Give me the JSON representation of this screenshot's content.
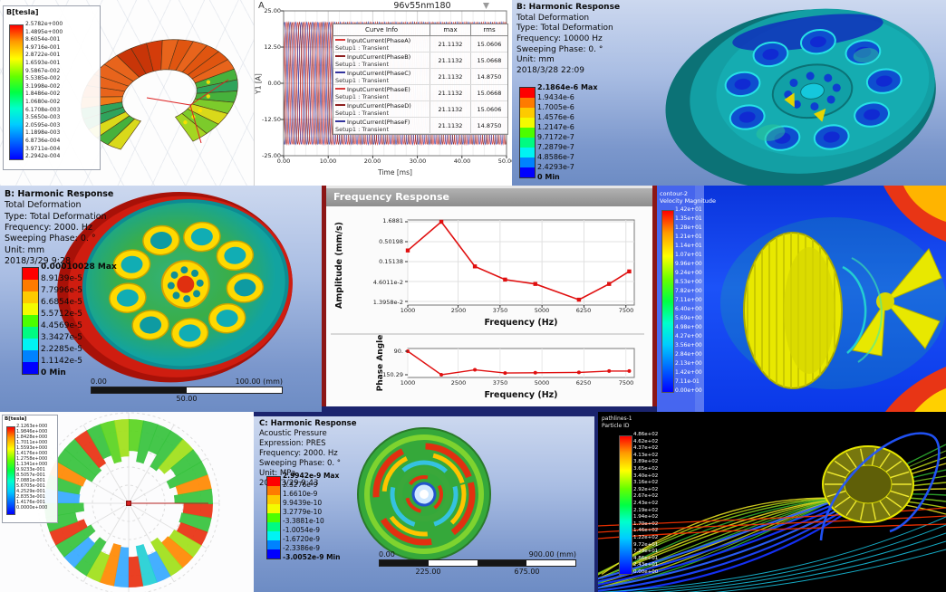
{
  "colors": {
    "ansys_bands": [
      "#fe0000",
      "#fe7b00",
      "#fdca00",
      "#f3fb00",
      "#4cfe00",
      "#00fb82",
      "#00f3f3",
      "#0082fe",
      "#0000fe"
    ],
    "window_title_bg": "#9a9a9a",
    "window_border": "#8c1616",
    "plot_line_red": "#e01010",
    "ansys_bg_top": "#ccd8ef",
    "ansys_bg_bottom": "#6d8cc4"
  },
  "panels": {
    "maxwell_torus": {
      "colorbar_title": "B[tesla]",
      "colorbar_values": [
        "2.5782e+000",
        "1.4895e+000",
        "8.6054e-001",
        "4.9716e-001",
        "2.8722e-001",
        "1.6593e-001",
        "9.5867e-002",
        "5.5385e-002",
        "3.1998e-002",
        "1.8486e-002",
        "1.0680e-002",
        "6.1708e-003",
        "3.5650e-003",
        "2.0595e-003",
        "1.1898e-003",
        "6.8736e-004",
        "3.9711e-004",
        "2.2942e-004"
      ]
    },
    "transient": {
      "marker": "A",
      "title": "96v55nm180",
      "legend_headers": [
        "Curve Info",
        "max",
        "rms"
      ]
    },
    "harmonic_10000": {
      "header": [
        "B: Harmonic Response",
        "Total Deformation",
        "Type: Total Deformation",
        "Frequency: 10000 Hz",
        "Sweeping Phase: 0. °",
        "Unit: mm",
        "2018/3/28 22:09"
      ],
      "colorbar": [
        "2.1864e-6 Max",
        "1.9434e-6",
        "1.7005e-6",
        "1.4576e-6",
        "1.2147e-6",
        "9.7172e-7",
        "7.2879e-7",
        "4.8586e-7",
        "2.4293e-7",
        "0 Min"
      ]
    },
    "harmonic_2000": {
      "header": [
        "B: Harmonic Response",
        "Total Deformation",
        "Type: Total Deformation",
        "Frequency: 2000. Hz",
        "Sweeping Phase: 0. °",
        "Unit: mm",
        "2018/3/29 9:28"
      ],
      "colorbar": [
        "0.00010028 Max",
        "8.9139e-5",
        "7.7996e-5",
        "6.6854e-5",
        "5.5712e-5",
        "4.4569e-5",
        "3.3427e-5",
        "2.2285e-5",
        "1.1142e-5",
        "0 Min"
      ],
      "ruler": {
        "start": "0.00",
        "mid": "50.00",
        "end": "100.00 (mm)"
      }
    },
    "freq_response": {
      "window_title": "Frequency Response"
    },
    "cfd": {
      "colorbar_title_lines": [
        "contour-2",
        "Velocity Magnitude"
      ],
      "colorbar_values": [
        "1.42e+01",
        "1.35e+01",
        "1.28e+01",
        "1.21e+01",
        "1.14e+01",
        "1.07e+01",
        "9.96e+00",
        "9.24e+00",
        "8.53e+00",
        "7.82e+00",
        "7.11e+00",
        "6.40e+00",
        "5.69e+00",
        "4.98e+00",
        "4.27e+00",
        "3.56e+00",
        "2.84e+00",
        "2.13e+00",
        "1.42e+00",
        "7.11e-01",
        "0.00e+00"
      ]
    },
    "maxwell_stator": {
      "colorbar_title": "B[tesla]",
      "colorbar_values": [
        "2.1263e+000",
        "1.9846e+000",
        "1.8428e+000",
        "1.7011e+000",
        "1.5593e+000",
        "1.4176e+000",
        "1.2758e+000",
        "1.1341e+000",
        "9.9233e-001",
        "8.5057e-001",
        "7.0881e-001",
        "5.6705e-001",
        "4.2529e-001",
        "2.8353e-001",
        "1.4176e-001",
        "0.0000e+000"
      ]
    },
    "acoustic": {
      "header": [
        "C: Harmonic Response",
        "Acoustic Pressure",
        "Expression: PRES",
        "Frequency: 2000. Hz",
        "Sweeping Phase: 0. °",
        "Unit: MPa",
        "2018/3/29 9:43"
      ],
      "colorbar": [
        "2.9942e-9 Max",
        "2.3276e-9",
        "1.6610e-9",
        "9.9439e-10",
        "3.2779e-10",
        "-3.3881e-10",
        "-1.0054e-9",
        "-1.6720e-9",
        "-2.3386e-9",
        "-3.0052e-9 Min"
      ],
      "ruler": {
        "start": "0.00",
        "end": "900.00 (mm)",
        "q1": "225.00",
        "q3": "675.00"
      }
    },
    "streamlines": {
      "colorbar_title_lines": [
        "pathlines-1",
        "Particle ID"
      ],
      "colorbar_values": [
        "4.86e+02",
        "4.62e+02",
        "4.37e+02",
        "4.13e+02",
        "3.89e+02",
        "3.65e+02",
        "3.40e+02",
        "3.16e+02",
        "2.92e+02",
        "2.67e+02",
        "2.43e+02",
        "2.19e+02",
        "1.94e+02",
        "1.70e+02",
        "1.46e+02",
        "1.22e+02",
        "9.72e+01",
        "7.29e+01",
        "4.86e+01",
        "2.43e+01",
        "0.00e+00"
      ]
    }
  },
  "chart_data": [
    {
      "id": "transient_currents",
      "type": "line",
      "title": "96v55nm180",
      "xlabel": "Time [ms]",
      "ylabel": "Y1 [A]",
      "xlim": [
        0,
        50
      ],
      "ylim": [
        -25,
        25
      ],
      "x_ticks": [
        0,
        10,
        20,
        30,
        40,
        50
      ],
      "x_tick_labels": [
        "0.00",
        "10.00",
        "20.00",
        "30.00",
        "40.00",
        "50.00"
      ],
      "y_ticks": [
        25,
        12.5,
        0,
        -12.5,
        -25
      ],
      "y_tick_labels": [
        "25.00",
        "12.50",
        "0.00",
        "-12.50",
        "-25.00"
      ],
      "grid": true,
      "legend_position": "right-overlay",
      "waveform": {
        "kind": "sine",
        "amplitude": 21.1132,
        "period_ms": 2.5
      },
      "series": [
        {
          "name": "InputCurrent(PhaseA)",
          "setup": "Setup1 : Transient",
          "max": "21.1132",
          "rms": "15.0606",
          "color": "#d93a3a",
          "phase_deg": 0
        },
        {
          "name": "InputCurrent(PhaseB)",
          "setup": "Setup1 : Transient",
          "max": "21.1132",
          "rms": "15.0668",
          "color": "#8e1f1f",
          "phase_deg": -60
        },
        {
          "name": "InputCurrent(PhaseC)",
          "setup": "Setup1 : Transient",
          "max": "21.1132",
          "rms": "14.8750",
          "color": "#34349e",
          "phase_deg": -120
        },
        {
          "name": "InputCurrent(PhaseE)",
          "setup": "Setup1 : Transient",
          "max": "21.1132",
          "rms": "15.0668",
          "color": "#d93a3a",
          "phase_deg": -240
        },
        {
          "name": "InputCurrent(PhaseD)",
          "setup": "Setup1 : Transient",
          "max": "21.1132",
          "rms": "15.0606",
          "color": "#8e1f1f",
          "phase_deg": -180
        },
        {
          "name": "InputCurrent(PhaseF)",
          "setup": "Setup1 : Transient",
          "max": "21.1132",
          "rms": "14.8750",
          "color": "#34349e",
          "phase_deg": -300
        }
      ]
    },
    {
      "id": "frequency_response_amplitude",
      "type": "line",
      "y_scale": "log",
      "ylabel": "Amplitude (mm/s)",
      "xlabel": "Frequency (Hz)",
      "x": [
        1000,
        2000,
        3000,
        3900,
        4800,
        6100,
        7000,
        7600
      ],
      "y": [
        0.3,
        1.6881,
        0.115,
        0.052,
        0.04,
        0.0155,
        0.04,
        0.085
      ],
      "xlim": [
        1000,
        7750
      ],
      "x_ticks": [
        1000,
        2500,
        3750,
        5000,
        6250,
        7500
      ],
      "x_tick_labels": [
        "1000",
        "2500",
        "3750",
        "5000",
        "6250",
        "7500"
      ],
      "y_tick_labels": [
        "1.6881",
        "0.50198",
        "0.15138",
        "4.6011e-2",
        "1.3958e-2"
      ],
      "color": "#e01010",
      "marker": "square",
      "grid": true
    },
    {
      "id": "frequency_response_phase",
      "type": "line",
      "ylabel": "Phase Angle",
      "xlabel": "Frequency (Hz)",
      "x": [
        1000,
        2000,
        3000,
        3900,
        4800,
        6100,
        7000,
        7600
      ],
      "y": [
        90,
        -150.29,
        -100,
        -133,
        -130,
        -126,
        -112,
        -112
      ],
      "ylim": [
        -170,
        110
      ],
      "x_ticks": [
        1000,
        2500,
        3750,
        5000,
        6250,
        7500
      ],
      "x_tick_labels": [
        "1000",
        "2500",
        "3750",
        "5000",
        "6250",
        "7500"
      ],
      "y_tick_labels": [
        "90.",
        "-150.29"
      ],
      "color": "#e01010"
    }
  ]
}
